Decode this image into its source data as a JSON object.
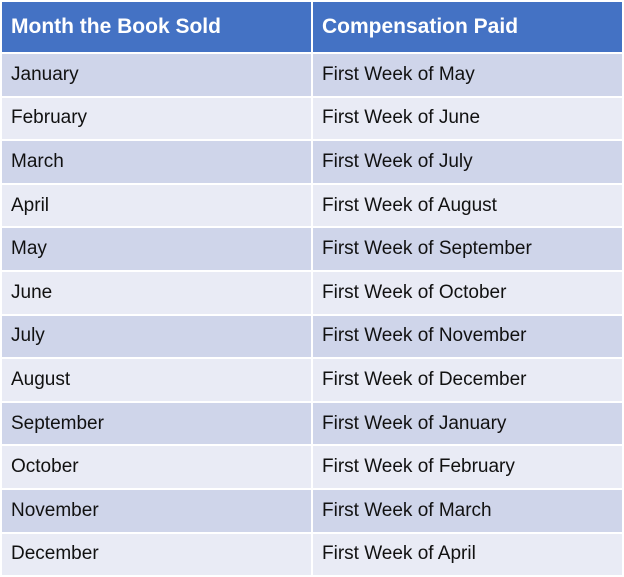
{
  "table": {
    "header": [
      "Month the Book Sold",
      "Compensation Paid"
    ],
    "rows": [
      [
        "January",
        "First Week of May"
      ],
      [
        "February",
        "First Week of June"
      ],
      [
        "March",
        "First Week of July"
      ],
      [
        "April",
        "First Week of August"
      ],
      [
        "May",
        "First Week of September"
      ],
      [
        "June",
        "First Week of October"
      ],
      [
        "July",
        "First Week of November"
      ],
      [
        "August",
        "First Week of December"
      ],
      [
        "September",
        "First Week of January"
      ],
      [
        "October",
        "First Week of February"
      ],
      [
        "November",
        "First Week of March"
      ],
      [
        "December",
        "First Week of April"
      ]
    ]
  }
}
